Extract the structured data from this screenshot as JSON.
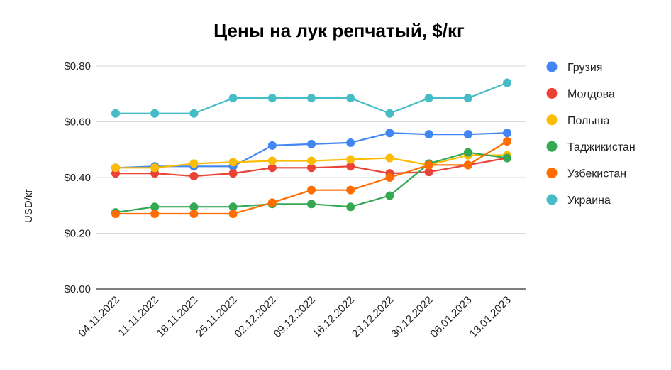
{
  "chart_data": {
    "type": "line",
    "title": "Цены на лук репчатый, $/кг",
    "xlabel": "",
    "ylabel": "USD/кг",
    "ylim": [
      0,
      0.8
    ],
    "yticks": [
      0,
      0.2,
      0.4,
      0.6,
      0.8
    ],
    "ytick_labels": [
      "$0.00",
      "$0.20",
      "$0.40",
      "$0.60",
      "$0.80"
    ],
    "grid": true,
    "legend_position": "right",
    "categories": [
      "04.11.2022",
      "11.11.2022",
      "18.11.2022",
      "25.11.2022",
      "02.12.2022",
      "09.12.2022",
      "16.12.2022",
      "23.12.2022",
      "30.12.2022",
      "06.01.2023",
      "13.01.2023"
    ],
    "series": [
      {
        "name": "Грузия",
        "color": "#4285f4",
        "values": [
          0.435,
          0.44,
          0.44,
          0.44,
          0.515,
          0.52,
          0.525,
          0.56,
          0.555,
          0.555,
          0.56
        ]
      },
      {
        "name": "Молдова",
        "color": "#ea4335",
        "values": [
          0.415,
          0.415,
          0.405,
          0.415,
          0.435,
          0.435,
          0.44,
          0.415,
          0.42,
          0.445,
          0.47
        ]
      },
      {
        "name": "Польша",
        "color": "#fbbc04",
        "values": [
          0.435,
          0.435,
          0.45,
          0.455,
          0.46,
          0.46,
          0.465,
          0.47,
          0.445,
          0.48,
          0.48
        ]
      },
      {
        "name": "Таджикистан",
        "color": "#34a853",
        "values": [
          0.275,
          0.295,
          0.295,
          0.295,
          0.305,
          0.305,
          0.295,
          0.335,
          0.45,
          0.49,
          0.47
        ]
      },
      {
        "name": "Узбекистан",
        "color": "#ff6d01",
        "values": [
          0.27,
          0.27,
          0.27,
          0.27,
          0.31,
          0.355,
          0.355,
          0.4,
          0.445,
          0.445,
          0.53
        ]
      },
      {
        "name": "Украина",
        "color": "#46bdc6",
        "values": [
          0.63,
          0.63,
          0.63,
          0.685,
          0.685,
          0.685,
          0.685,
          0.63,
          0.685,
          0.685,
          0.74
        ]
      }
    ]
  }
}
